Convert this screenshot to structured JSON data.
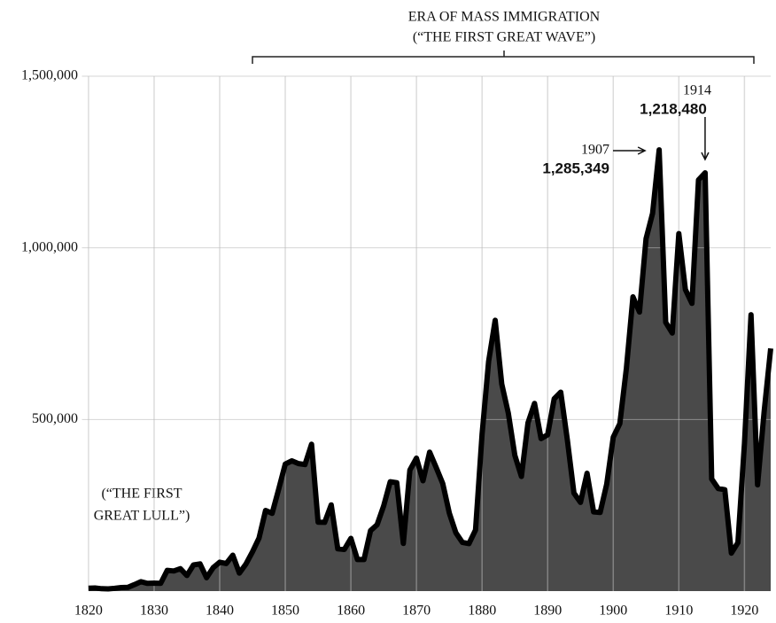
{
  "chart_data": {
    "type": "area",
    "title": [
      "ERA OF MASS IMMIGRATION",
      "(“THE FIRST GREAT WAVE”)"
    ],
    "annotations": [
      {
        "text": [
          "(“THE FIRST",
          "GREAT LULL”)"
        ]
      },
      {
        "x": 1907,
        "text": "1907"
      },
      {
        "x": 1914,
        "text": "1914"
      }
    ],
    "x": [
      1820,
      1821,
      1822,
      1823,
      1824,
      1825,
      1826,
      1827,
      1828,
      1829,
      1830,
      1831,
      1832,
      1833,
      1834,
      1835,
      1836,
      1837,
      1838,
      1839,
      1840,
      1841,
      1842,
      1843,
      1844,
      1845,
      1846,
      1847,
      1848,
      1849,
      1850,
      1851,
      1852,
      1853,
      1854,
      1855,
      1856,
      1857,
      1858,
      1859,
      1860,
      1861,
      1862,
      1863,
      1864,
      1865,
      1866,
      1867,
      1868,
      1869,
      1870,
      1871,
      1872,
      1873,
      1874,
      1875,
      1876,
      1877,
      1878,
      1879,
      1880,
      1881,
      1882,
      1883,
      1884,
      1885,
      1886,
      1887,
      1888,
      1889,
      1890,
      1891,
      1892,
      1893,
      1894,
      1895,
      1896,
      1897,
      1898,
      1899,
      1900,
      1901,
      1902,
      1903,
      1904,
      1905,
      1906,
      1907,
      1908,
      1909,
      1910,
      1911,
      1912,
      1913,
      1914,
      1915,
      1916,
      1917,
      1918,
      1919,
      1920,
      1921,
      1922,
      1923,
      1924
    ],
    "y": [
      8385,
      9127,
      6911,
      6354,
      7912,
      10199,
      10837,
      18875,
      27382,
      22520,
      23322,
      22633,
      60482,
      58640,
      65365,
      45374,
      76242,
      79340,
      38914,
      68069,
      84066,
      80289,
      104565,
      52496,
      78615,
      114371,
      154416,
      234968,
      226527,
      297024,
      369980,
      379466,
      371603,
      368645,
      427833,
      200877,
      200436,
      251306,
      123126,
      121282,
      153640,
      91918,
      91985,
      176282,
      193418,
      248120,
      318568,
      315722,
      138840,
      352768,
      387203,
      321350,
      404806,
      359803,
      313339,
      227498,
      169986,
      141857,
      138469,
      177826,
      457257,
      669431,
      788992,
      603322,
      518592,
      395346,
      334203,
      490109,
      546889,
      444427,
      455302,
      560319,
      579663,
      439730,
      285631,
      258536,
      343267,
      230832,
      229299,
      311715,
      448572,
      487918,
      648743,
      857046,
      812870,
      1026499,
      1100735,
      1285349,
      782870,
      751786,
      1041570,
      878587,
      838172,
      1197892,
      1218480,
      326700,
      298826,
      295403,
      110618,
      141132,
      430001,
      805228,
      309556,
      522919,
      706896
    ],
    "value_labels": [
      null,
      null,
      null,
      null,
      null,
      null,
      null,
      null,
      null,
      null,
      null,
      null,
      null,
      null,
      null,
      null,
      null,
      null,
      null,
      null,
      null,
      null,
      null,
      null,
      null,
      null,
      null,
      null,
      null,
      null,
      null,
      null,
      null,
      null,
      null,
      null,
      null,
      null,
      null,
      null,
      null,
      null,
      null,
      null,
      null,
      null,
      null,
      null,
      null,
      null,
      null,
      null,
      null,
      null,
      null,
      null,
      null,
      null,
      null,
      null,
      null,
      null,
      null,
      null,
      null,
      null,
      null,
      null,
      null,
      null,
      null,
      null,
      null,
      null,
      null,
      null,
      null,
      null,
      null,
      null,
      null,
      null,
      null,
      null,
      null,
      null,
      null,
      "1,285,349",
      null,
      null,
      null,
      null,
      null,
      null,
      "1,218,480",
      null,
      null,
      null,
      null,
      null,
      null,
      null,
      null,
      null,
      null
    ],
    "color": "#4a4a4a",
    "xlim": [
      1819,
      1924
    ],
    "xticks": [
      1820,
      1830,
      1840,
      1850,
      1860,
      1870,
      1880,
      1890,
      1900,
      1910,
      1920
    ],
    "ylim": [
      0,
      1500000
    ],
    "yticks": [
      {
        "value": 500000,
        "label": "500,000"
      },
      {
        "value": 1000000,
        "label": "1,000,000"
      },
      {
        "value": 1500000,
        "label": "1,500,000"
      }
    ],
    "grid": true
  }
}
